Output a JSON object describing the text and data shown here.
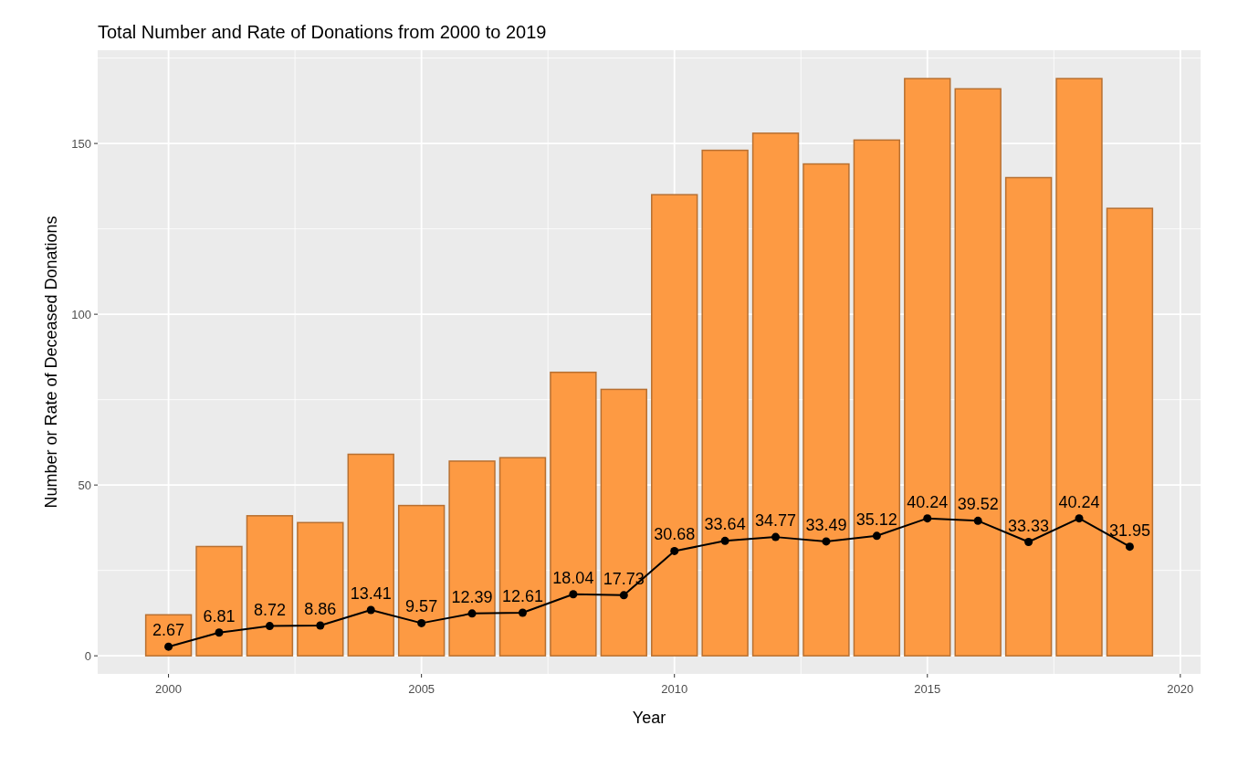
{
  "chart_data": {
    "type": "bar",
    "title": "Total Number and Rate of Donations from 2000 to 2019",
    "xlabel": "Year",
    "ylabel": "Number or Rate of Deceased Donations",
    "x": [
      2000,
      2001,
      2002,
      2003,
      2004,
      2005,
      2006,
      2007,
      2008,
      2009,
      2010,
      2011,
      2012,
      2013,
      2014,
      2015,
      2016,
      2017,
      2018,
      2019
    ],
    "series": [
      {
        "color": "#fd9a43",
        "values": [
          12,
          32,
          41,
          39,
          59,
          44,
          57,
          58,
          83,
          78,
          135,
          148,
          153,
          144,
          151,
          169,
          166,
          140,
          169,
          131
        ]
      },
      {
        "type": "line",
        "color": "#000000",
        "marker": "circle",
        "data_labels": true,
        "values": [
          2.67,
          6.81,
          8.72,
          8.86,
          13.41,
          9.57,
          12.39,
          12.61,
          18.04,
          17.73,
          30.68,
          33.64,
          34.77,
          33.49,
          35.12,
          40.24,
          39.52,
          33.33,
          40.24,
          31.95
        ]
      }
    ],
    "xlim": [
      1998.6,
      2020.4
    ],
    "xticks": [
      2000,
      2005,
      2010,
      2015,
      2020
    ],
    "ylim": [
      -5.3,
      177.3
    ],
    "yticks": [
      0,
      50,
      100,
      150
    ],
    "grid": true
  }
}
